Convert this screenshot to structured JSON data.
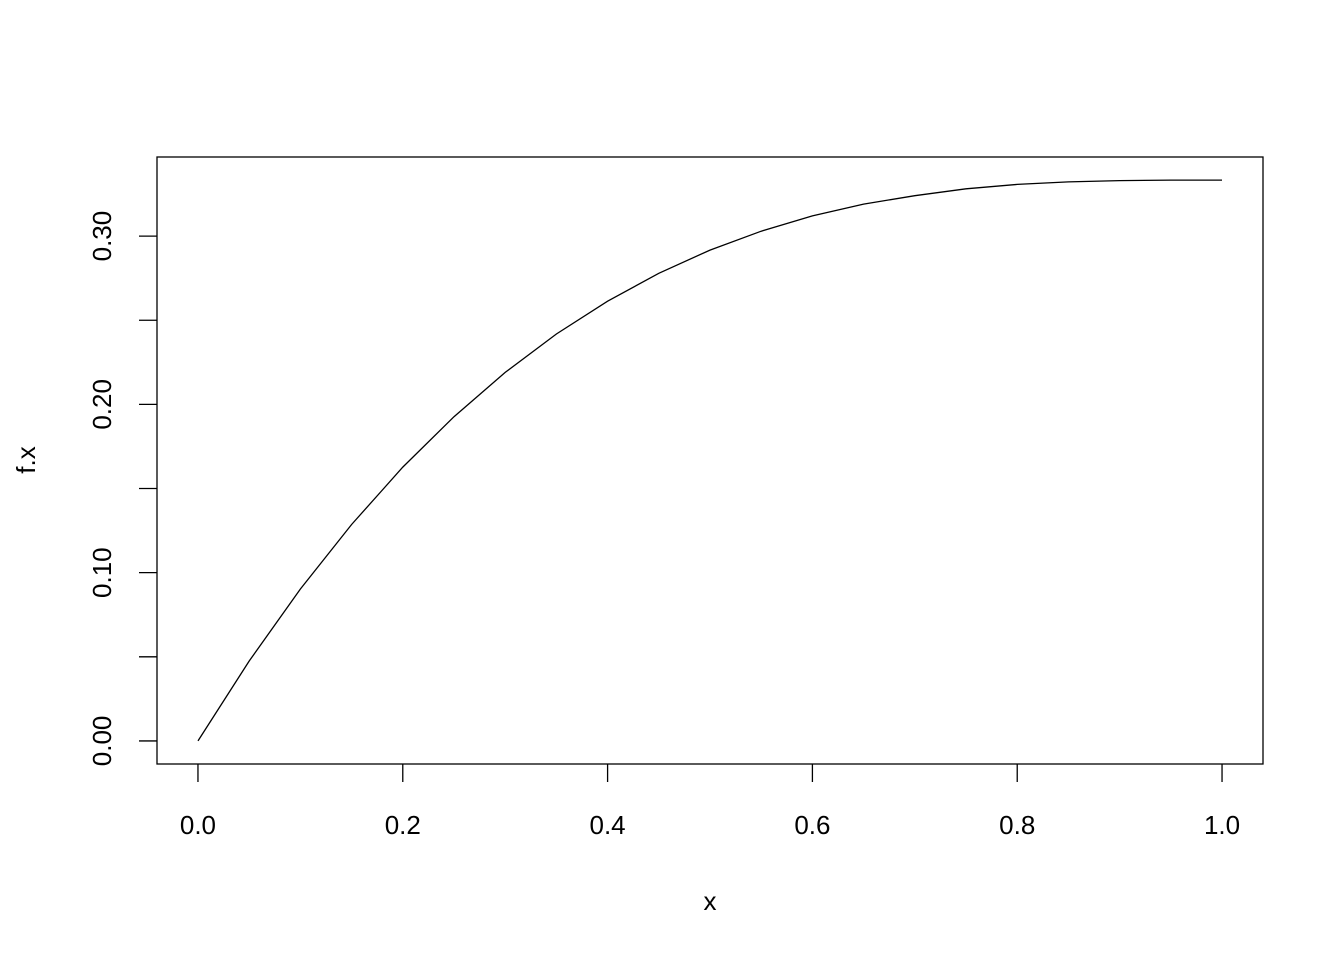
{
  "chart_data": {
    "type": "line",
    "title": "",
    "xlabel": "x",
    "ylabel": "f.x",
    "xlim": [
      -0.04,
      1.04
    ],
    "ylim": [
      -0.0137,
      0.347
    ],
    "xticks": [
      "0.0",
      "0.2",
      "0.4",
      "0.6",
      "0.8",
      "1.0"
    ],
    "xtick_values": [
      0,
      0.2,
      0.4,
      0.6,
      0.8,
      1.0
    ],
    "yticks": [
      "0.00",
      "0.10",
      "0.20",
      "0.30"
    ],
    "ytick_values": [
      0,
      0.1,
      0.2,
      0.3
    ],
    "yminor_values": [
      0.05,
      0.15,
      0.25
    ],
    "grid": false,
    "color": "#000000",
    "series": [
      {
        "x": [
          0,
          0.05,
          0.1,
          0.15,
          0.2,
          0.25,
          0.3,
          0.35,
          0.4,
          0.45,
          0.5,
          0.55,
          0.6,
          0.65,
          0.7,
          0.75,
          0.8,
          0.85,
          0.9,
          0.95,
          1.0
        ],
        "y": [
          0,
          0.0475,
          0.0903,
          0.1286,
          0.1627,
          0.1927,
          0.219,
          0.2418,
          0.2613,
          0.2779,
          0.2917,
          0.3029,
          0.312,
          0.319,
          0.324,
          0.3281,
          0.3307,
          0.3322,
          0.333,
          0.3333,
          0.3333
        ]
      }
    ]
  }
}
